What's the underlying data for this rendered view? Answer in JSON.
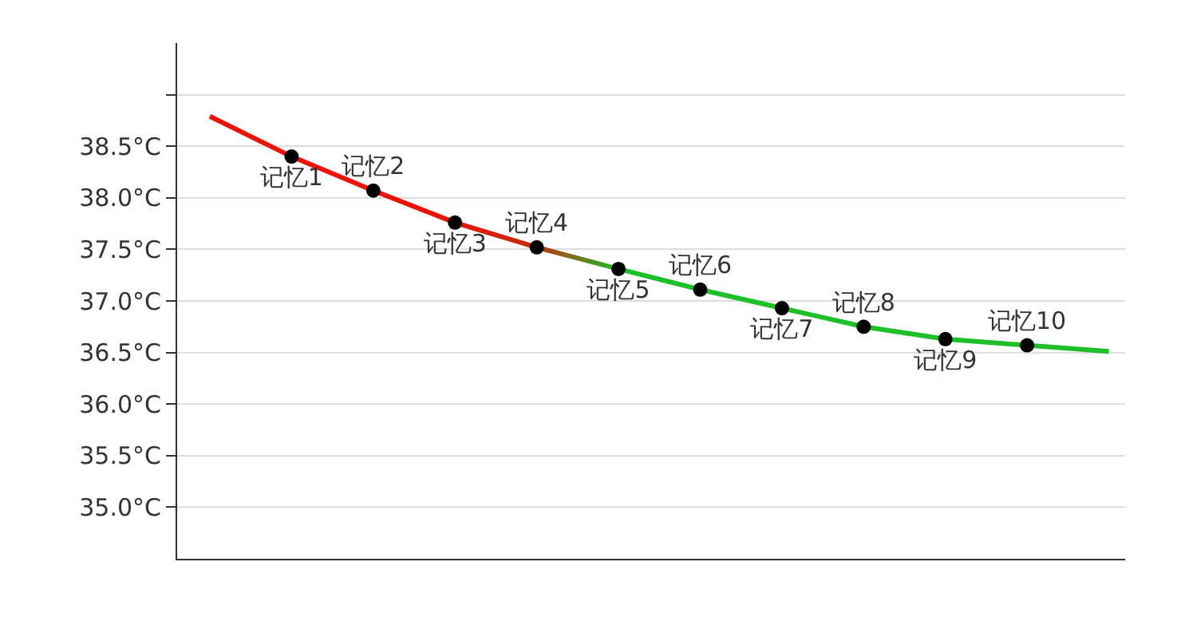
{
  "chart_data": {
    "type": "line",
    "categories": [
      null,
      null,
      null,
      null,
      null,
      null,
      null,
      null,
      null,
      null,
      null,
      null
    ],
    "ylim": [
      34.5,
      39.5
    ],
    "yticks": [
      {
        "value": 35.0,
        "label": "35.0°C"
      },
      {
        "value": 35.5,
        "label": "35.5°C"
      },
      {
        "value": 36.0,
        "label": "36.0°C"
      },
      {
        "value": 36.5,
        "label": "36.5°C"
      },
      {
        "value": 37.0,
        "label": "37.0°C"
      },
      {
        "value": 37.5,
        "label": "37.5°C"
      },
      {
        "value": 38.0,
        "label": "38.0°C"
      },
      {
        "value": 38.5,
        "label": "38.5°C"
      },
      {
        "value": 39.0,
        "label": null
      }
    ],
    "tick_labels": "y",
    "grid": "y",
    "series": [
      {
        "marker": "none",
        "colors": [
          "#e8140a",
          "#e8140a",
          "#e8140a",
          "#e8140a",
          "#c0300f",
          "#1fbf2a",
          "#1fbf2a",
          "#1fbf2a",
          "#1fbf2a",
          "#1fbf2a",
          "#1fbf2a",
          "#1fbf2a"
        ],
        "values": [
          38.79,
          38.4,
          38.07,
          37.76,
          37.52,
          37.31,
          37.11,
          36.93,
          36.75,
          36.63,
          36.57,
          36.51
        ]
      },
      {
        "type": "scatter",
        "color": "#000000",
        "marker": "circle",
        "values": [
          null,
          38.4,
          38.07,
          37.76,
          37.52,
          37.31,
          37.11,
          36.93,
          36.75,
          36.63,
          36.57,
          null
        ],
        "value_labels": [
          null,
          "记忆1",
          "记忆2",
          "记忆3",
          "记忆4",
          "记忆5",
          "记忆6",
          "记忆7",
          "记忆8",
          "记忆9",
          "记忆10",
          null
        ]
      }
    ]
  }
}
